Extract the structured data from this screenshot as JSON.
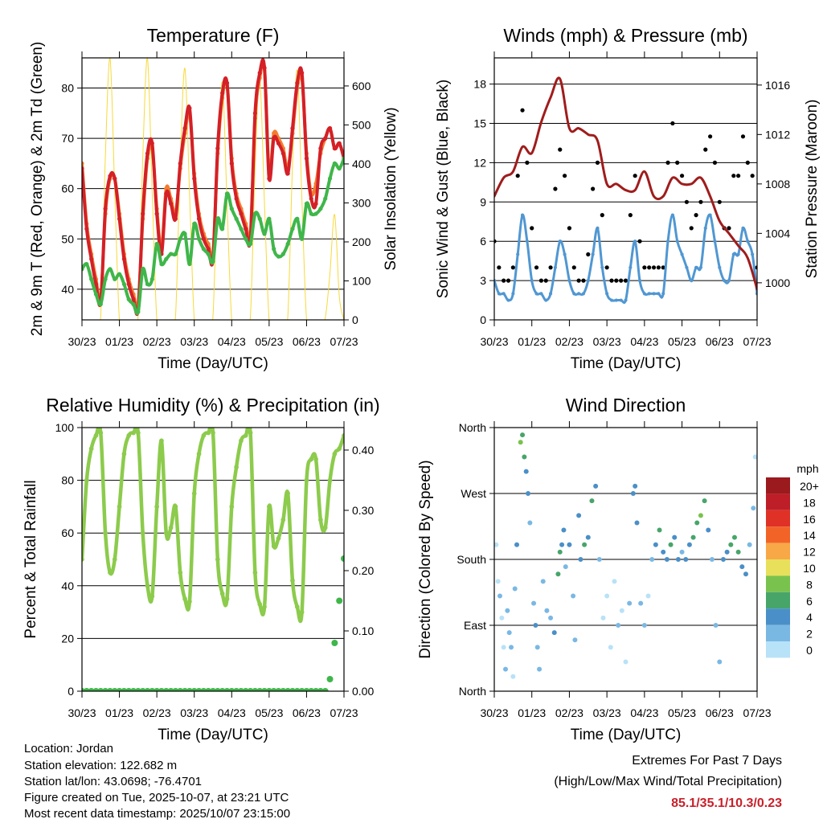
{
  "colors": {
    "temp2m": "#d42027",
    "temp9m": "#f47d30",
    "dew": "#3fb64a",
    "solar": "#f7d93a",
    "wind": "#5097d2",
    "gust": "#000000",
    "pressure": "#a01c1c",
    "rh": "#8ccb4c",
    "rain": "#3fb64a"
  },
  "x_ticks": [
    "30/23",
    "01/23",
    "02/23",
    "03/23",
    "04/23",
    "05/23",
    "06/23",
    "07/23"
  ],
  "x_label": "Time (Day/UTC)",
  "chart_data": [
    {
      "type": "line",
      "title": "Temperature (F)",
      "xlabel": "Time (Day/UTC)",
      "ylabel": "2m & 9m T (Red, Orange) & 2m Td (Green)",
      "y2label": "Solar Insolation (Yellow)",
      "xlim": [
        0,
        7
      ],
      "ylim": [
        33.9,
        86
      ],
      "y2lim": [
        0,
        672
      ],
      "yticks": [
        40,
        50,
        60,
        70,
        80
      ],
      "y2ticks": [
        0,
        100,
        200,
        300,
        400,
        500,
        600
      ],
      "x_step_days": 0.125,
      "series": [
        {
          "name": "Solar Insolation",
          "axis": "right",
          "color": "solar",
          "values": [
            0,
            0,
            0,
            0,
            10,
            420,
            670,
            330,
            0,
            0,
            0,
            0,
            10,
            420,
            670,
            330,
            0,
            0,
            0,
            0,
            10,
            400,
            645,
            320,
            0,
            0,
            0,
            0,
            10,
            380,
            610,
            300,
            0,
            0,
            0,
            0,
            10,
            390,
            620,
            300,
            0,
            0,
            0,
            0,
            10,
            400,
            640,
            310,
            0,
            0,
            0,
            0,
            5,
            120,
            270,
            60,
            0
          ]
        },
        {
          "name": "9m T",
          "color": "temp9m",
          "values": [
            65,
            53,
            47,
            42,
            38,
            55,
            62,
            62,
            55,
            47,
            42,
            39,
            37,
            54,
            66,
            68,
            56,
            48,
            60,
            58,
            55,
            64,
            71,
            75,
            63,
            55,
            51,
            49,
            47,
            67,
            78,
            81,
            66,
            59,
            56,
            53,
            51,
            74,
            82,
            84,
            63,
            71,
            70,
            68,
            64,
            71,
            80,
            82,
            67,
            59,
            61,
            67,
            70,
            72,
            68,
            69,
            66
          ]
        },
        {
          "name": "2m T",
          "color": "temp2m",
          "values": [
            64,
            52,
            46,
            41,
            37.5,
            56,
            62.5,
            62,
            54,
            46,
            41,
            38,
            36,
            55,
            67,
            69,
            55,
            47,
            59,
            57,
            54,
            65,
            72,
            76,
            62,
            54,
            50,
            48,
            46,
            68,
            79,
            81,
            65,
            58,
            55,
            52,
            50,
            75,
            83,
            84,
            62,
            70,
            69,
            67,
            63,
            72,
            81,
            83,
            66,
            58,
            57,
            68,
            70,
            72,
            68,
            69,
            66
          ]
        },
        {
          "name": "2m Td",
          "color": "dew",
          "values": [
            44,
            45,
            42,
            39,
            37,
            42,
            44,
            42,
            43,
            41,
            38,
            37,
            35.5,
            44,
            41,
            42,
            49,
            45,
            46,
            47,
            47,
            50,
            51,
            45,
            53,
            50,
            48,
            47,
            45.5,
            54,
            52,
            59,
            56,
            54,
            52,
            50,
            49,
            55,
            54,
            51,
            54,
            48,
            46.5,
            47,
            49,
            52,
            54,
            50,
            57,
            55,
            55,
            56,
            58,
            62,
            65,
            64,
            66
          ]
        }
      ]
    },
    {
      "type": "line",
      "title": "Winds (mph) & Pressure (mb)",
      "xlabel": "Time (Day/UTC)",
      "ylabel": "Sonic Wind & Gust (Blue, Black)",
      "y2label": "Station Pressure (Maroon)",
      "xlim": [
        0,
        7
      ],
      "ylim": [
        0,
        20
      ],
      "y2lim": [
        997,
        1018.2
      ],
      "yticks": [
        0,
        3,
        6,
        9,
        12,
        15,
        18
      ],
      "y2ticks": [
        1000,
        1004,
        1008,
        1012,
        1016
      ],
      "series": [
        {
          "name": "Gust",
          "color": "gust",
          "style": "dots",
          "x_step_days": 0.125,
          "values": [
            6,
            4,
            3,
            3,
            4,
            11,
            16,
            12,
            7,
            4,
            3,
            3,
            4,
            10,
            13,
            11,
            7,
            4,
            3,
            3,
            5,
            10,
            12,
            8,
            4,
            3,
            3,
            3,
            3,
            8,
            11,
            6,
            4,
            4,
            4,
            4,
            4,
            12,
            15,
            12,
            11,
            9,
            7,
            8,
            9,
            13,
            14,
            12,
            9,
            7,
            7,
            11,
            11,
            14,
            12,
            11,
            4
          ]
        },
        {
          "name": "Sonic Wind",
          "color": "wind",
          "x_step_days": 0.125,
          "values": [
            3,
            2,
            2,
            1.5,
            2,
            5,
            8,
            6,
            3,
            2,
            2,
            1.5,
            2,
            4,
            6,
            5,
            3,
            2,
            2,
            2,
            3,
            5,
            7,
            4,
            2,
            1.5,
            1.5,
            1.5,
            1.5,
            4,
            6,
            3,
            2,
            2,
            2,
            2,
            2,
            6,
            8,
            6,
            5,
            4,
            3,
            4,
            4,
            7,
            8,
            6,
            4,
            3,
            3,
            5,
            5,
            7,
            6,
            5,
            2
          ]
        },
        {
          "name": "Station Pressure",
          "axis": "right",
          "color": "pressure",
          "x_step_days": 0.25,
          "values": [
            1007,
            1008.5,
            1009,
            1011,
            1010.5,
            1013,
            1015,
            1016.5,
            1012.5,
            1012.5,
            1012,
            1011.5,
            1008,
            1008,
            1007.5,
            1007.5,
            1009,
            1007,
            1007,
            1008.5,
            1008,
            1008,
            1008.5,
            1007,
            1005,
            1004,
            1003,
            1002,
            999.5
          ]
        }
      ]
    },
    {
      "type": "line",
      "title": "Relative Humidity (%) & Precipitation (in)",
      "xlabel": "Time (Day/UTC)",
      "ylabel": "Percent & Total Rainfall",
      "xlim": [
        0,
        7
      ],
      "ylim": [
        0,
        100
      ],
      "y2lim": [
        0,
        0.4373
      ],
      "yticks": [
        0,
        20,
        40,
        60,
        80,
        100
      ],
      "y2ticks": [
        "0.00",
        "0.10",
        "0.20",
        "0.30",
        "0.40"
      ],
      "x_step_days": 0.125,
      "series": [
        {
          "name": "Relative Humidity",
          "color": "rh",
          "values": [
            50,
            80,
            92,
            97,
            98,
            60,
            45,
            50,
            70,
            90,
            97,
            98,
            98,
            60,
            40,
            36,
            70,
            95,
            60,
            62,
            70,
            45,
            35,
            34,
            75,
            90,
            97,
            98,
            98,
            50,
            37,
            35,
            70,
            85,
            95,
            97,
            98,
            45,
            33,
            32,
            70,
            55,
            58,
            65,
            75,
            42,
            32,
            30,
            80,
            88,
            88,
            65,
            62,
            80,
            90,
            92,
            97
          ]
        },
        {
          "name": "Total Rainfall",
          "axis": "right",
          "color": "rain",
          "style": "dots",
          "values": [
            0,
            0,
            0,
            0,
            0,
            0,
            0,
            0,
            0,
            0,
            0,
            0,
            0,
            0,
            0,
            0,
            0,
            0,
            0,
            0,
            0,
            0,
            0,
            0,
            0,
            0,
            0,
            0,
            0,
            0,
            0,
            0,
            0,
            0,
            0,
            0,
            0,
            0,
            0,
            0,
            0,
            0,
            0,
            0,
            0,
            0,
            0,
            0,
            0,
            0,
            0,
            0,
            0,
            0.02,
            0.08,
            0.15,
            0.22
          ]
        }
      ]
    },
    {
      "type": "scatter",
      "title": "Wind Direction",
      "xlabel": "Time (Day/UTC)",
      "ylabel": "Direction (Colored By Speed)",
      "xlim": [
        0,
        7
      ],
      "ylim": [
        0,
        360
      ],
      "yticks": [
        {
          "v": 0,
          "l": "North"
        },
        {
          "v": 90,
          "l": "East"
        },
        {
          "v": 180,
          "l": "South"
        },
        {
          "v": 270,
          "l": "West"
        },
        {
          "v": 360,
          "l": "North"
        }
      ],
      "legend": {
        "title": "mph",
        "levels": [
          "20+",
          "18",
          "16",
          "14",
          "12",
          "10",
          "8",
          "6",
          "4",
          "2",
          "0"
        ],
        "colors": [
          "#9a1a1e",
          "#bd1e27",
          "#e03127",
          "#f26328",
          "#f8a847",
          "#e8e05a",
          "#7ac24e",
          "#47a56a",
          "#4a8fc8",
          "#7ab8e4",
          "#b8e2f7"
        ]
      },
      "points": [
        [
          0.05,
          200,
          1
        ],
        [
          0.1,
          150,
          1
        ],
        [
          0.15,
          130,
          2
        ],
        [
          0.2,
          100,
          1
        ],
        [
          0.25,
          60,
          1
        ],
        [
          0.3,
          30,
          3
        ],
        [
          0.35,
          110,
          2
        ],
        [
          0.4,
          80,
          3
        ],
        [
          0.45,
          60,
          2
        ],
        [
          0.5,
          20,
          1
        ],
        [
          0.55,
          140,
          2
        ],
        [
          0.6,
          200,
          4
        ],
        [
          0.7,
          340,
          8
        ],
        [
          0.75,
          350,
          7
        ],
        [
          0.8,
          320,
          6
        ],
        [
          0.85,
          300,
          5
        ],
        [
          0.9,
          270,
          4
        ],
        [
          0.95,
          230,
          3
        ],
        [
          1.05,
          120,
          3
        ],
        [
          1.1,
          90,
          4
        ],
        [
          1.15,
          60,
          3
        ],
        [
          1.2,
          30,
          2
        ],
        [
          1.3,
          150,
          2
        ],
        [
          1.4,
          110,
          3
        ],
        [
          1.5,
          100,
          3
        ],
        [
          1.6,
          80,
          4
        ],
        [
          1.7,
          160,
          7
        ],
        [
          1.75,
          190,
          6
        ],
        [
          1.8,
          200,
          5
        ],
        [
          1.85,
          220,
          4
        ],
        [
          1.9,
          170,
          3
        ],
        [
          2.0,
          200,
          4
        ],
        [
          2.1,
          130,
          2
        ],
        [
          2.15,
          70,
          3
        ],
        [
          2.25,
          240,
          4
        ],
        [
          2.3,
          180,
          5
        ],
        [
          2.4,
          200,
          6
        ],
        [
          2.5,
          210,
          5
        ],
        [
          2.6,
          260,
          6
        ],
        [
          2.7,
          280,
          4
        ],
        [
          2.8,
          180,
          3
        ],
        [
          2.9,
          100,
          1
        ],
        [
          3.0,
          130,
          1
        ],
        [
          3.1,
          60,
          1
        ],
        [
          3.2,
          150,
          1
        ],
        [
          3.3,
          90,
          2
        ],
        [
          3.4,
          110,
          1
        ],
        [
          3.5,
          40,
          1
        ],
        [
          3.6,
          120,
          3
        ],
        [
          3.7,
          270,
          4
        ],
        [
          3.75,
          280,
          5
        ],
        [
          3.8,
          230,
          4
        ],
        [
          3.9,
          120,
          2
        ],
        [
          4.0,
          90,
          2
        ],
        [
          4.1,
          130,
          1
        ],
        [
          4.2,
          180,
          3
        ],
        [
          4.3,
          200,
          5
        ],
        [
          4.4,
          220,
          6
        ],
        [
          4.5,
          190,
          4
        ],
        [
          4.6,
          180,
          5
        ],
        [
          4.7,
          200,
          6
        ],
        [
          4.8,
          210,
          5
        ],
        [
          4.9,
          180,
          4
        ],
        [
          5.0,
          190,
          3
        ],
        [
          5.1,
          180,
          4
        ],
        [
          5.2,
          200,
          5
        ],
        [
          5.3,
          210,
          6
        ],
        [
          5.4,
          230,
          7
        ],
        [
          5.5,
          240,
          8
        ],
        [
          5.6,
          260,
          7
        ],
        [
          5.7,
          220,
          5
        ],
        [
          5.8,
          180,
          3
        ],
        [
          5.9,
          90,
          3
        ],
        [
          6.0,
          40,
          2
        ],
        [
          6.1,
          180,
          4
        ],
        [
          6.2,
          190,
          5
        ],
        [
          6.3,
          200,
          6
        ],
        [
          6.4,
          210,
          7
        ],
        [
          6.5,
          190,
          6
        ],
        [
          6.6,
          170,
          5
        ],
        [
          6.7,
          160,
          4
        ],
        [
          6.8,
          200,
          3
        ],
        [
          6.9,
          250,
          2
        ],
        [
          6.95,
          320,
          1
        ]
      ]
    }
  ],
  "info": {
    "location": "Location: Jordan",
    "elevation": "Station elevation: 122.682 m",
    "latlon": "Station lat/lon: 43.0698; -76.4701",
    "created": "Figure created on Tue, 2025-10-07, at 23:21 UTC",
    "recent": "Most recent data timestamp: 2025/10/07 23:15:00"
  },
  "extremes": {
    "title": "Extremes For Past 7 Days",
    "subtitle": "(High/Low/Max Wind/Total Precipitation)",
    "values": "85.1/35.1/10.3/0.23"
  }
}
